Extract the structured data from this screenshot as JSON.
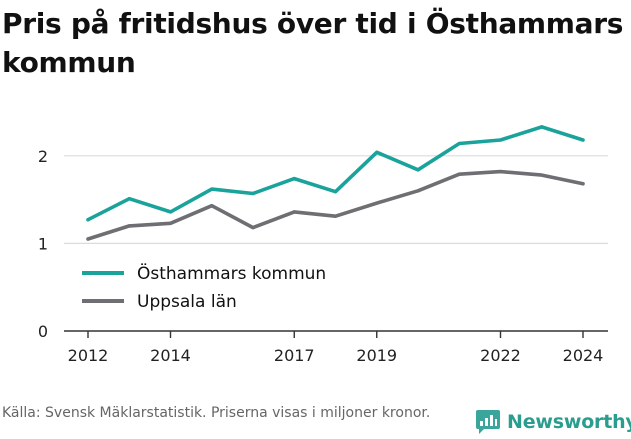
{
  "title": "Pris på fritidshus över tid i Östhammars kommun",
  "footer_text": "Källa: Svensk Mäklarstatistik. Priserna visas i miljoner kronor.",
  "logo": {
    "text": "Newsworthy",
    "icon": "newsworthy-chart-icon",
    "color": "#3aa59a"
  },
  "colors": {
    "primary": "#1aa39a",
    "secondary": "#6f6e73",
    "grid": "#dcdcdc",
    "axis": "#333333"
  },
  "chart_data": {
    "type": "line",
    "title": "Pris på fritidshus över tid i Östhammars kommun",
    "xlabel": "",
    "ylabel": "",
    "xlim": [
      2012,
      2024
    ],
    "ylim": [
      0,
      2.5
    ],
    "x_ticks": [
      2012,
      2014,
      2017,
      2019,
      2022,
      2024
    ],
    "y_ticks": [
      0,
      1,
      2
    ],
    "grid": true,
    "legend_position": "center-left",
    "x": [
      2012,
      2013,
      2014,
      2015,
      2016,
      2017,
      2018,
      2019,
      2020,
      2021,
      2022,
      2023,
      2024
    ],
    "series": [
      {
        "name": "Östhammars kommun",
        "color": "#1aa39a",
        "values": [
          1.27,
          1.51,
          1.36,
          1.62,
          1.57,
          1.74,
          1.59,
          2.04,
          1.84,
          2.14,
          2.18,
          2.33,
          2.18
        ]
      },
      {
        "name": "Uppsala län",
        "color": "#6f6e73",
        "values": [
          1.05,
          1.2,
          1.23,
          1.43,
          1.18,
          1.36,
          1.31,
          1.46,
          1.6,
          1.79,
          1.82,
          1.78,
          1.68
        ]
      }
    ]
  }
}
